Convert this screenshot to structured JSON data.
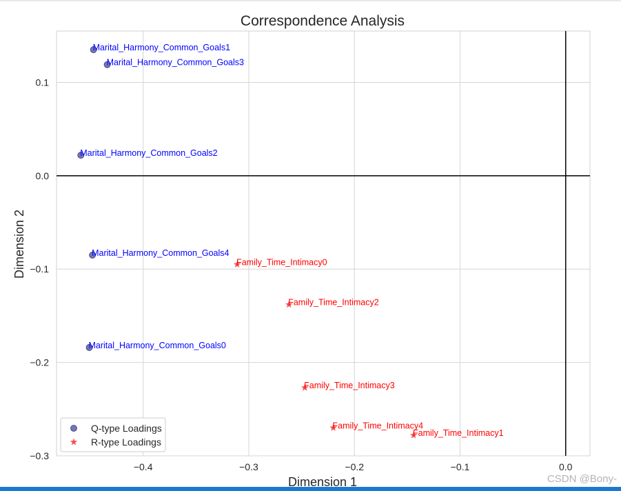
{
  "chart_data": {
    "type": "scatter",
    "title": "Correspondence Analysis",
    "xlabel": "Dimension 1",
    "ylabel": "Dimension 2",
    "xlim": [
      -0.482,
      0.023
    ],
    "ylim": [
      -0.3,
      0.155
    ],
    "xticks": [
      -0.4,
      -0.3,
      -0.2,
      -0.1,
      0.0
    ],
    "xtick_labels": [
      "−0.4",
      "−0.3",
      "−0.2",
      "−0.1",
      "0.0"
    ],
    "yticks": [
      0.1,
      0.0,
      -0.1,
      -0.2,
      -0.3
    ],
    "ytick_labels": [
      "0.1",
      "0.0",
      "−0.1",
      "−0.2",
      "−0.3"
    ],
    "grid": true,
    "reference_lines": {
      "x": 0.0,
      "y": 0.0
    },
    "legend": {
      "placement": "lower-left"
    },
    "series": [
      {
        "name": "Q-type Loadings",
        "marker": "circle",
        "color": "#5b5ea6",
        "label_color": "#0000ff",
        "points": [
          {
            "label": "Marital_Harmony_Common_Goals1",
            "x": -0.447,
            "y": 0.135
          },
          {
            "label": "Marital_Harmony_Common_Goals3",
            "x": -0.434,
            "y": 0.119
          },
          {
            "label": "Marital_Harmony_Common_Goals2",
            "x": -0.459,
            "y": 0.022
          },
          {
            "label": "Marital_Harmony_Common_Goals4",
            "x": -0.448,
            "y": -0.085
          },
          {
            "label": "Marital_Harmony_Common_Goals0",
            "x": -0.451,
            "y": -0.184
          }
        ]
      },
      {
        "name": "R-type Loadings",
        "marker": "star",
        "color": "#f43f3f",
        "label_color": "#ff0000",
        "points": [
          {
            "label": "Family_Time_Intimacy0",
            "x": -0.311,
            "y": -0.095
          },
          {
            "label": "Family_Time_Intimacy2",
            "x": -0.262,
            "y": -0.138
          },
          {
            "label": "Family_Time_Intimacy3",
            "x": -0.247,
            "y": -0.227
          },
          {
            "label": "Family_Time_Intimacy4",
            "x": -0.22,
            "y": -0.27
          },
          {
            "label": "Family_Time_Intimacy1",
            "x": -0.144,
            "y": -0.278
          }
        ]
      }
    ]
  },
  "watermark": "CSDN @Bony-"
}
